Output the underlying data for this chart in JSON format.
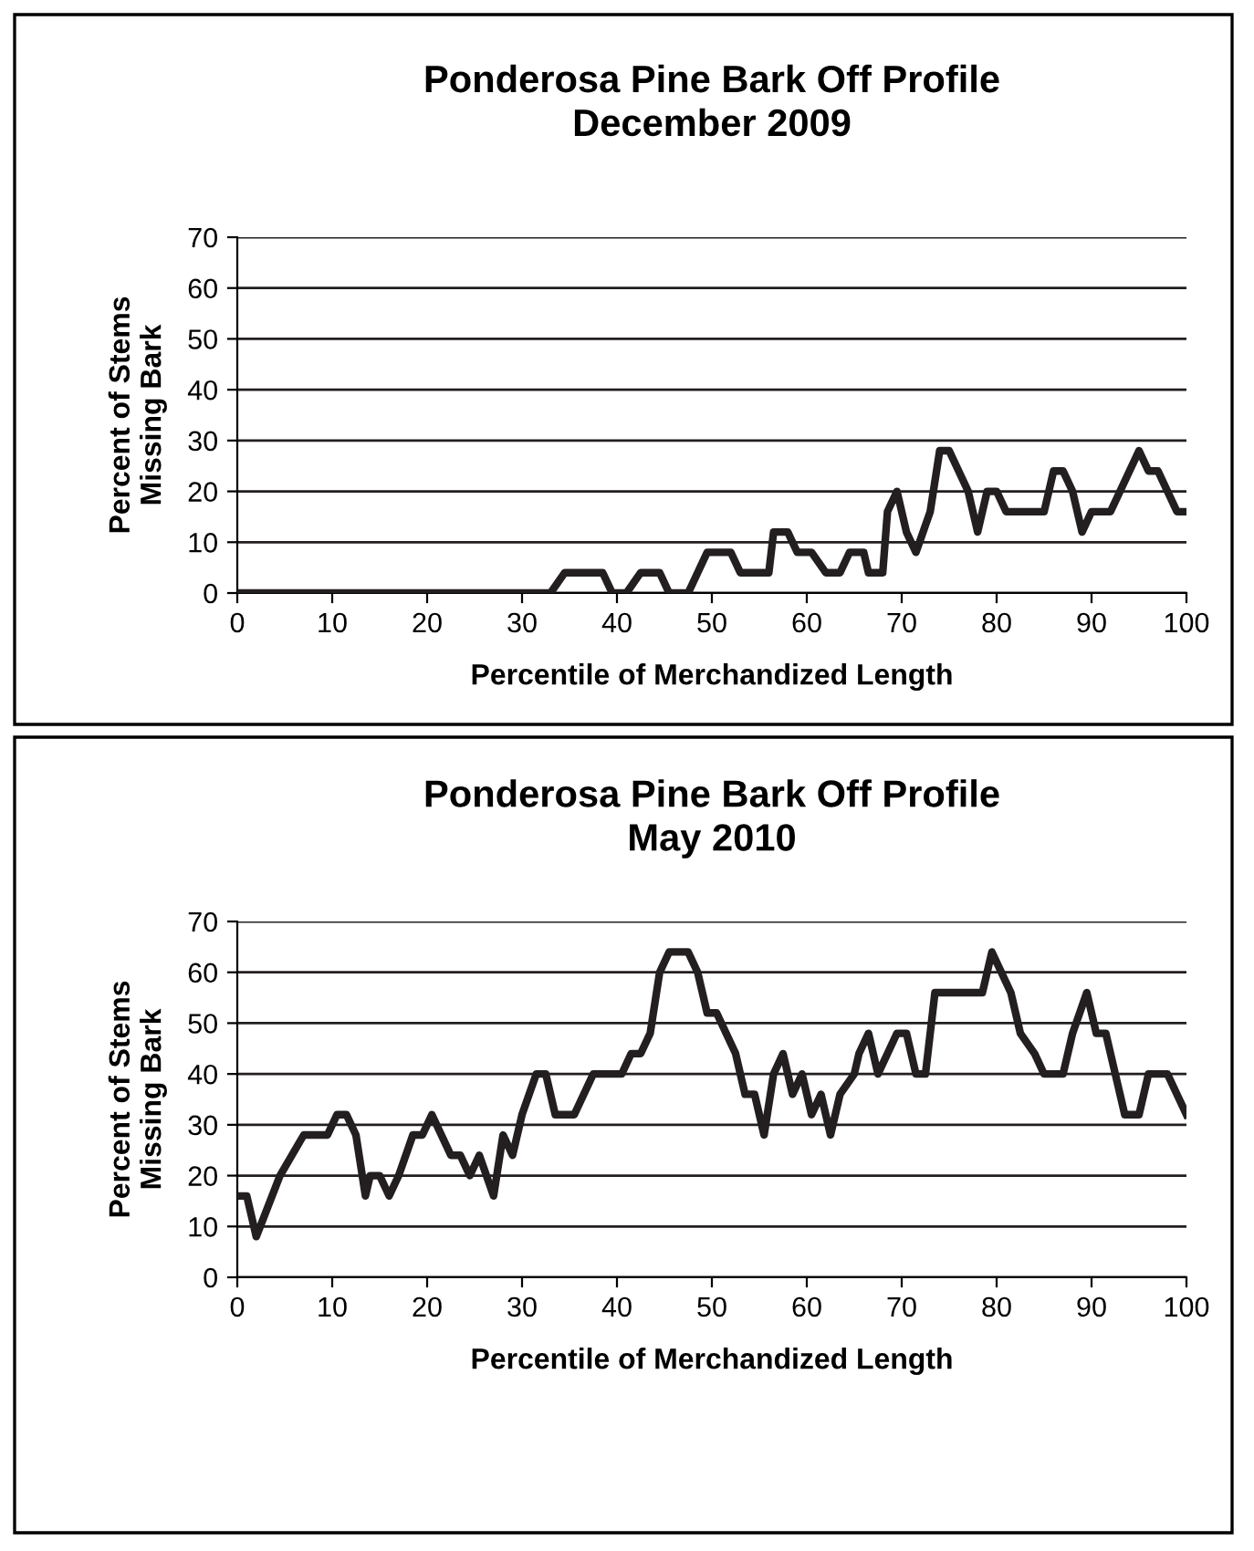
{
  "chart_data": [
    {
      "type": "line",
      "title": "Ponderosa Pine Bark Off Profile\nDecember 2009",
      "xlabel": "Percentile of Merchandized Length",
      "ylabel": "Percent of Stems\nMissing Bark",
      "xlim": [
        0,
        100
      ],
      "ylim": [
        0,
        70
      ],
      "xticks": [
        0,
        10,
        20,
        30,
        40,
        50,
        60,
        70,
        80,
        90,
        100
      ],
      "yticks": [
        0,
        10,
        20,
        30,
        40,
        50,
        60,
        70
      ],
      "grid": "y",
      "marker": "none",
      "line_style": "solid",
      "series": [
        {
          "color": "#231f20",
          "x": [
            0,
            33,
            34.5,
            38.5,
            39.5,
            41,
            42.5,
            44.5,
            45.5,
            47.5,
            48.5,
            49.5,
            52,
            53,
            56,
            56.5,
            58,
            59,
            60.5,
            62,
            63.5,
            64.5,
            66,
            66.5,
            68,
            68.5,
            69.5,
            70.5,
            71.5,
            73,
            74,
            75,
            76,
            77,
            78,
            79,
            80,
            81,
            85,
            86,
            87,
            88,
            89,
            90,
            92,
            93,
            94,
            95,
            96,
            97,
            98,
            99,
            100
          ],
          "values": [
            0,
            0,
            4,
            4,
            0,
            0,
            4,
            4,
            0,
            0,
            4,
            8,
            8,
            4,
            4,
            12,
            12,
            8,
            8,
            4,
            4,
            8,
            8,
            4,
            4,
            16,
            20,
            12,
            8,
            16,
            28,
            28,
            24,
            20,
            12,
            20,
            20,
            16,
            16,
            24,
            24,
            20,
            12,
            16,
            16,
            20,
            24,
            28,
            24,
            24,
            20,
            16,
            16
          ]
        }
      ]
    },
    {
      "type": "line",
      "title": "Ponderosa Pine Bark Off Profile\nMay 2010",
      "xlabel": "Percentile of Merchandized Length",
      "ylabel": "Percent of Stems\nMissing Bark",
      "xlim": [
        0,
        100
      ],
      "ylim": [
        0,
        70
      ],
      "xticks": [
        0,
        10,
        20,
        30,
        40,
        50,
        60,
        70,
        80,
        90,
        100
      ],
      "yticks": [
        0,
        10,
        20,
        30,
        40,
        50,
        60,
        70
      ],
      "grid": "y",
      "marker": "none",
      "line_style": "solid",
      "series": [
        {
          "color": "#231f20",
          "x": [
            0,
            1,
            2,
            4.5,
            7,
            9.5,
            10.5,
            11.5,
            12.5,
            13.5,
            14,
            15,
            16,
            17,
            18.5,
            19.5,
            20.5,
            21.5,
            22.5,
            23.5,
            24.5,
            25.5,
            27,
            28,
            29,
            30,
            31.5,
            32.5,
            33.5,
            35.5,
            36.5,
            37.5,
            40.5,
            41.5,
            42.5,
            43.5,
            44.5,
            45.5,
            47.5,
            48.5,
            49.5,
            50.5,
            51.5,
            52.5,
            53.5,
            54.5,
            55.5,
            56.5,
            57.5,
            58.5,
            59.5,
            60.5,
            61.5,
            62.5,
            63.5,
            65,
            65.5,
            66.5,
            67.5,
            69.5,
            70.5,
            71.5,
            72.5,
            73.5,
            78.5,
            79.5,
            81.5,
            82.5,
            84,
            85,
            87,
            88,
            89.5,
            90.5,
            91.5,
            92.5,
            93.5,
            95,
            96,
            98,
            99,
            100
          ],
          "values": [
            16,
            16,
            8,
            20,
            28,
            28,
            32,
            32,
            28,
            16,
            20,
            20,
            16,
            20,
            28,
            28,
            32,
            28,
            24,
            24,
            20,
            24,
            16,
            28,
            24,
            32,
            40,
            40,
            32,
            32,
            36,
            40,
            40,
            44,
            44,
            48,
            60,
            64,
            64,
            60,
            52,
            52,
            48,
            44,
            36,
            36,
            28,
            40,
            44,
            36,
            40,
            32,
            36,
            28,
            36,
            40,
            44,
            48,
            40,
            48,
            48,
            40,
            40,
            56,
            56,
            64,
            56,
            48,
            44,
            40,
            40,
            48,
            56,
            48,
            48,
            40,
            32,
            32,
            40,
            40,
            36,
            32
          ]
        }
      ]
    }
  ]
}
